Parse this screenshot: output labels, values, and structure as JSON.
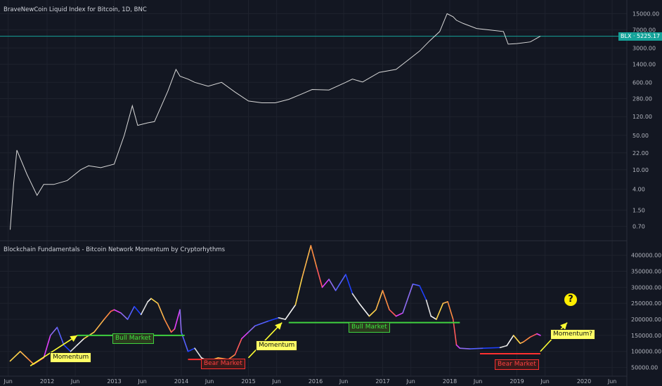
{
  "chart_data": [
    {
      "type": "line",
      "title": "BraveNewCoin Liquid Index for Bitcoin, 1D, BNC",
      "scale": "log",
      "ylabel": "",
      "xlabel": "",
      "ytick_labels": [
        "15000.00",
        "7000.00",
        "3000.00",
        "1400.00",
        "600.00",
        "280.00",
        "120.00",
        "50.00",
        "22.00",
        "10.00",
        "4.00",
        "1.50",
        "0.70"
      ],
      "ytick_values": [
        15000,
        7000,
        3000,
        1400,
        600,
        280,
        120,
        50,
        22,
        10,
        4,
        1.5,
        0.7
      ],
      "ylim": [
        0.45,
        25000
      ],
      "last_price_label": "BLX · 5225.17",
      "last_price": 5225.17,
      "x": [
        2011.45,
        2011.5,
        2011.55,
        2011.7,
        2011.85,
        2011.95,
        2012.1,
        2012.3,
        2012.5,
        2012.62,
        2012.8,
        2013.0,
        2013.15,
        2013.27,
        2013.35,
        2013.5,
        2013.6,
        2013.8,
        2013.92,
        2013.98,
        2014.1,
        2014.2,
        2014.4,
        2014.6,
        2014.8,
        2015.0,
        2015.2,
        2015.4,
        2015.6,
        2015.8,
        2015.95,
        2016.2,
        2016.45,
        2016.55,
        2016.7,
        2016.95,
        2017.2,
        2017.4,
        2017.55,
        2017.7,
        2017.85,
        2017.96,
        2018.05,
        2018.1,
        2018.2,
        2018.4,
        2018.6,
        2018.8,
        2018.87,
        2019.0,
        2019.2,
        2019.35
      ],
      "y": [
        0.6,
        5,
        25,
        8,
        3,
        5,
        5,
        6,
        10,
        12,
        11,
        13,
        50,
        200,
        80,
        90,
        95,
        400,
        1100,
        800,
        700,
        600,
        500,
        600,
        380,
        250,
        230,
        230,
        270,
        350,
        430,
        420,
        600,
        700,
        610,
        960,
        1100,
        1800,
        2600,
        4200,
        6500,
        15000,
        13000,
        11000,
        9500,
        7500,
        7000,
        6500,
        3600,
        3700,
        4000,
        5225.17
      ]
    },
    {
      "type": "area",
      "title": "Blockchain Fundamentals - Bitcoin Network Momentum by Cryptorhythms",
      "ytick_labels": [
        "400000.00",
        "350000.00",
        "300000.00",
        "250000.00",
        "200000.00",
        "150000.00",
        "100000.00",
        "50000.00"
      ],
      "ytick_values": [
        400000,
        350000,
        300000,
        250000,
        200000,
        150000,
        100000,
        50000
      ],
      "ylim": [
        25000,
        430000
      ],
      "x": [
        2011.45,
        2011.6,
        2011.7,
        2011.8,
        2011.95,
        2012.05,
        2012.15,
        2012.25,
        2012.35,
        2012.45,
        2012.55,
        2012.7,
        2012.85,
        2012.95,
        2013.0,
        2013.1,
        2013.2,
        2013.3,
        2013.4,
        2013.5,
        2013.55,
        2013.65,
        2013.75,
        2013.85,
        2013.9,
        2013.98,
        2014.0,
        2014.1,
        2014.2,
        2014.3,
        2014.4,
        2014.55,
        2014.7,
        2014.8,
        2014.9,
        2015.0,
        2015.1,
        2015.3,
        2015.45,
        2015.55,
        2015.7,
        2015.8,
        2015.93,
        2016.02,
        2016.1,
        2016.2,
        2016.3,
        2016.45,
        2016.55,
        2016.65,
        2016.8,
        2016.9,
        2017.0,
        2017.1,
        2017.2,
        2017.3,
        2017.45,
        2017.55,
        2017.65,
        2017.72,
        2017.8,
        2017.9,
        2017.97,
        2018.05,
        2018.1,
        2018.15,
        2018.3,
        2018.5,
        2018.75,
        2018.85,
        2018.95,
        2019.05,
        2019.1,
        2019.2,
        2019.3,
        2019.35
      ],
      "y": [
        70000,
        100000,
        80000,
        60000,
        80000,
        150000,
        175000,
        120000,
        100000,
        120000,
        140000,
        160000,
        200000,
        225000,
        230000,
        220000,
        200000,
        240000,
        215000,
        255000,
        265000,
        250000,
        200000,
        160000,
        170000,
        230000,
        160000,
        100000,
        110000,
        80000,
        70000,
        80000,
        75000,
        90000,
        140000,
        160000,
        180000,
        195000,
        205000,
        200000,
        245000,
        330000,
        430000,
        360000,
        300000,
        325000,
        290000,
        340000,
        280000,
        250000,
        210000,
        230000,
        290000,
        230000,
        210000,
        220000,
        310000,
        305000,
        260000,
        210000,
        200000,
        250000,
        255000,
        200000,
        120000,
        110000,
        108000,
        110000,
        112000,
        118000,
        150000,
        125000,
        130000,
        145000,
        155000,
        150000
      ],
      "segment_colors": [
        "#ffd54a",
        "#ffb74d",
        "#ff8c42",
        "#ff5a5a",
        "#e040fb",
        "#8c6cf0",
        "#5561ff",
        "#1e40ff",
        "#e0e0e0",
        "#f5f5f5"
      ]
    }
  ],
  "x_axis": {
    "tick_labels": [
      "Jun",
      "2012",
      "Jun",
      "2013",
      "Jun",
      "2014",
      "Jun",
      "2015",
      "Jun",
      "2016",
      "Jun",
      "2017",
      "Jun",
      "2018",
      "Jun",
      "2019",
      "Jun",
      "2020",
      "Jun"
    ],
    "tick_values": [
      2011.42,
      2012.0,
      2012.42,
      2013.0,
      2013.42,
      2014.0,
      2014.42,
      2015.0,
      2015.42,
      2016.0,
      2016.42,
      2017.0,
      2017.42,
      2018.0,
      2018.42,
      2019.0,
      2019.42,
      2020.0,
      2020.42
    ]
  },
  "annotations": {
    "momentum_1": "Momentum",
    "momentum_2": "Momentum",
    "momentum_3": "Momentum?",
    "bull_1": "Bull Market",
    "bull_2": "Bull Market",
    "bear_1": "Bear Market",
    "bear_2": "Bear Market",
    "question": "?"
  },
  "colors": {
    "background": "#131722",
    "price_line": "#d8d8d8",
    "last_price_line": "#15a39a",
    "arrow": "#ffff33",
    "bull_line": "#3fd13f",
    "bear_line": "#ff3030"
  }
}
